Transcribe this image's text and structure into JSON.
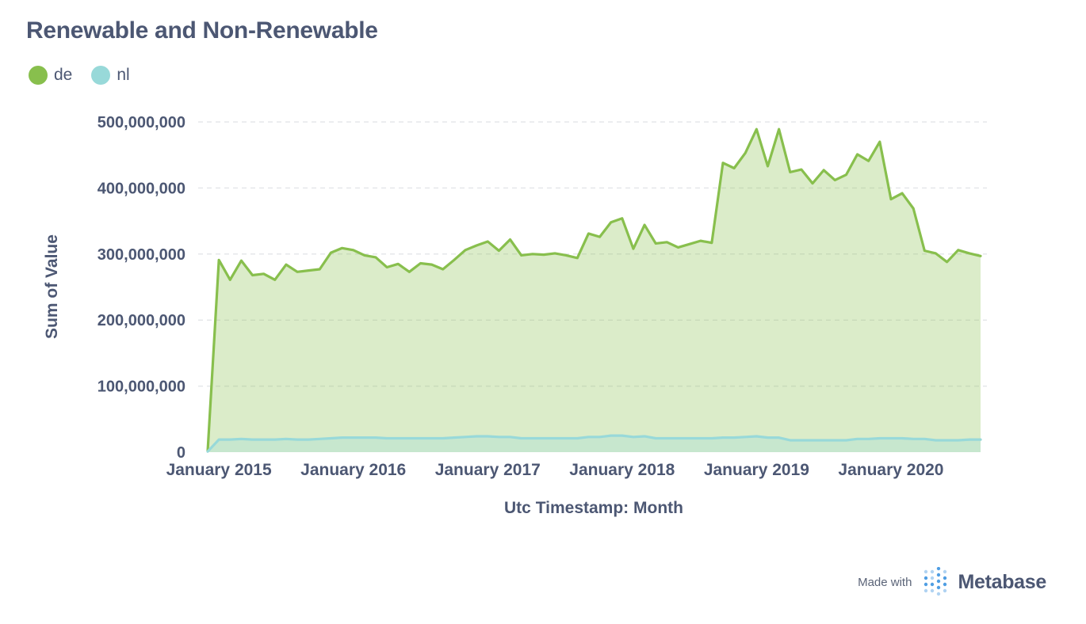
{
  "title": "Renewable and Non-Renewable",
  "legend": [
    {
      "name": "de",
      "color": "#88bf4d"
    },
    {
      "name": "nl",
      "color": "#98d9d9"
    }
  ],
  "footer": {
    "made_with": "Made with",
    "brand": "Metabase",
    "logo_icon": "metabase-logo-icon"
  },
  "chart_data": {
    "type": "area",
    "xlabel": "Utc Timestamp: Month",
    "ylabel": "Sum of Value",
    "ylim": [
      0,
      500000000
    ],
    "y_ticks": [
      0,
      100000000,
      200000000,
      300000000,
      400000000,
      500000000
    ],
    "y_tick_labels": [
      "0",
      "100,000,000",
      "200,000,000",
      "300,000,000",
      "400,000,000",
      "500,000,000"
    ],
    "x_tick_labels": [
      "January 2015",
      "January 2016",
      "January 2017",
      "January 2018",
      "January 2019",
      "January 2020"
    ],
    "x_tick_months": [
      2015,
      2016,
      2017,
      2018,
      2019,
      2020
    ],
    "x_start": "2014-12",
    "x_end": "2020-09",
    "grid": true,
    "legend_position": "top-left",
    "x": [
      "2014-12",
      "2015-01",
      "2015-02",
      "2015-03",
      "2015-04",
      "2015-05",
      "2015-06",
      "2015-07",
      "2015-08",
      "2015-09",
      "2015-10",
      "2015-11",
      "2015-12",
      "2016-01",
      "2016-02",
      "2016-03",
      "2016-04",
      "2016-05",
      "2016-06",
      "2016-07",
      "2016-08",
      "2016-09",
      "2016-10",
      "2016-11",
      "2016-12",
      "2017-01",
      "2017-02",
      "2017-03",
      "2017-04",
      "2017-05",
      "2017-06",
      "2017-07",
      "2017-08",
      "2017-09",
      "2017-10",
      "2017-11",
      "2017-12",
      "2018-01",
      "2018-02",
      "2018-03",
      "2018-04",
      "2018-05",
      "2018-06",
      "2018-07",
      "2018-08",
      "2018-09",
      "2018-10",
      "2018-11",
      "2018-12",
      "2019-01",
      "2019-02",
      "2019-03",
      "2019-04",
      "2019-05",
      "2019-06",
      "2019-07",
      "2019-08",
      "2019-09",
      "2019-10",
      "2019-11",
      "2019-12",
      "2020-01",
      "2020-02",
      "2020-03",
      "2020-04",
      "2020-05",
      "2020-06",
      "2020-07",
      "2020-08",
      "2020-09"
    ],
    "series": [
      {
        "name": "de",
        "color": "#88bf4d",
        "values": [
          2000000,
          291000000,
          261000000,
          290000000,
          268000000,
          270000000,
          261000000,
          284000000,
          273000000,
          275000000,
          277000000,
          302000000,
          309000000,
          306000000,
          298000000,
          295000000,
          280000000,
          285000000,
          273000000,
          286000000,
          284000000,
          277000000,
          291000000,
          306000000,
          313000000,
          319000000,
          305000000,
          322000000,
          298000000,
          300000000,
          299000000,
          301000000,
          298000000,
          294000000,
          331000000,
          326000000,
          348000000,
          354000000,
          308000000,
          344000000,
          316000000,
          318000000,
          310000000,
          315000000,
          320000000,
          317000000,
          438000000,
          430000000,
          453000000,
          489000000,
          433000000,
          489000000,
          424000000,
          428000000,
          407000000,
          427000000,
          412000000,
          420000000,
          451000000,
          441000000,
          470000000,
          383000000,
          392000000,
          369000000,
          305000000,
          301000000,
          288000000,
          306000000,
          301000000,
          297000000
        ]
      },
      {
        "name": "nl",
        "color": "#98d9d9",
        "values": [
          1000000,
          19000000,
          19000000,
          20000000,
          19000000,
          19000000,
          19000000,
          20000000,
          19000000,
          19000000,
          20000000,
          21000000,
          22000000,
          22000000,
          22000000,
          22000000,
          21000000,
          21000000,
          21000000,
          21000000,
          21000000,
          21000000,
          22000000,
          23000000,
          24000000,
          24000000,
          23000000,
          23000000,
          21000000,
          21000000,
          21000000,
          21000000,
          21000000,
          21000000,
          23000000,
          23000000,
          25000000,
          25000000,
          23000000,
          24000000,
          21000000,
          21000000,
          21000000,
          21000000,
          21000000,
          21000000,
          22000000,
          22000000,
          23000000,
          24000000,
          22000000,
          22000000,
          18000000,
          18000000,
          18000000,
          18000000,
          18000000,
          18000000,
          20000000,
          20000000,
          21000000,
          21000000,
          21000000,
          20000000,
          20000000,
          18000000,
          18000000,
          18000000,
          19000000,
          19000000
        ]
      }
    ]
  }
}
